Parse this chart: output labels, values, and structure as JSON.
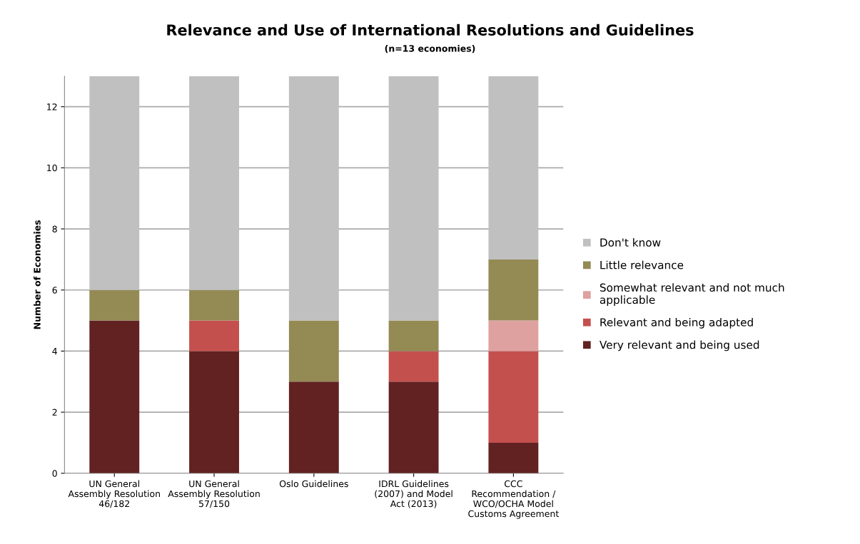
{
  "chart_data": {
    "type": "bar",
    "stacked": true,
    "title": "Relevance and Use of International Resolutions and Guidelines",
    "subtitle": "(n=13 economies)",
    "ylabel": "Number of Economies",
    "categories": [
      "UN General\nAssembly Resolution\n46/182",
      "UN General\nAssembly Resolution\n57/150",
      "Oslo Guidelines",
      "IDRL Guidelines\n(2007) and Model\nAct (2013)",
      "CCC\nRecommendation /\nWCO/OCHA Model\nCustoms Agreement"
    ],
    "series": [
      {
        "name": "Very relevant and being used",
        "color": "#622222",
        "values": [
          5,
          4,
          3,
          3,
          1
        ]
      },
      {
        "name": "Relevant and being adapted",
        "color": "#c4504e",
        "values": [
          0,
          1,
          0,
          1,
          3
        ]
      },
      {
        "name": "Somewhat relevant and not much\napplicable",
        "color": "#dfa0a0",
        "values": [
          0,
          0,
          0,
          0,
          1
        ]
      },
      {
        "name": "Little relevance",
        "color": "#948a54",
        "values": [
          1,
          1,
          2,
          1,
          2
        ]
      },
      {
        "name": "Don't know",
        "color": "#c0c0c0",
        "values": [
          7,
          7,
          8,
          8,
          6
        ]
      }
    ],
    "ylim": [
      0,
      13
    ],
    "yticks": [
      0,
      2,
      4,
      6,
      8,
      10,
      12
    ],
    "grid": "y",
    "legend": "right"
  }
}
